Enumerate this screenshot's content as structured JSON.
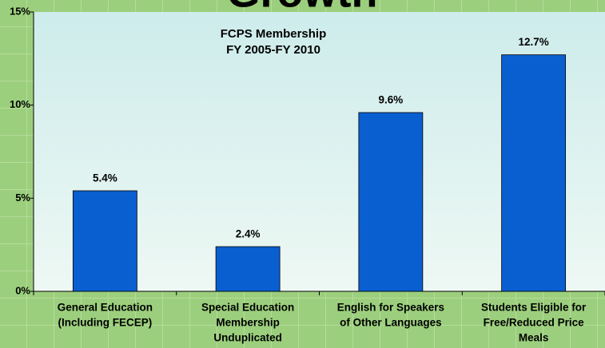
{
  "chart_data": {
    "type": "bar",
    "title": "Growth",
    "subtitle": [
      "FCPS Membership",
      "FY 2005-FY 2010"
    ],
    "categories": [
      [
        "General Education",
        "(Including FECEP)"
      ],
      [
        "Special Education",
        "Membership",
        "Unduplicated"
      ],
      [
        "English for Speakers",
        "of Other Languages"
      ],
      [
        "Students Eligible for",
        "Free/Reduced Price",
        "Meals"
      ]
    ],
    "values": [
      5.4,
      2.4,
      9.6,
      12.7
    ],
    "value_labels": [
      "5.4%",
      "2.4%",
      "9.6%",
      "12.7%"
    ],
    "color": "#0a5fd0",
    "ylim": [
      0,
      15
    ],
    "yticks": [
      {
        "value": 0,
        "label": "0%"
      },
      {
        "value": 5,
        "label": "5%"
      },
      {
        "value": 10,
        "label": "10%"
      },
      {
        "value": 15,
        "label": "15%"
      }
    ]
  }
}
